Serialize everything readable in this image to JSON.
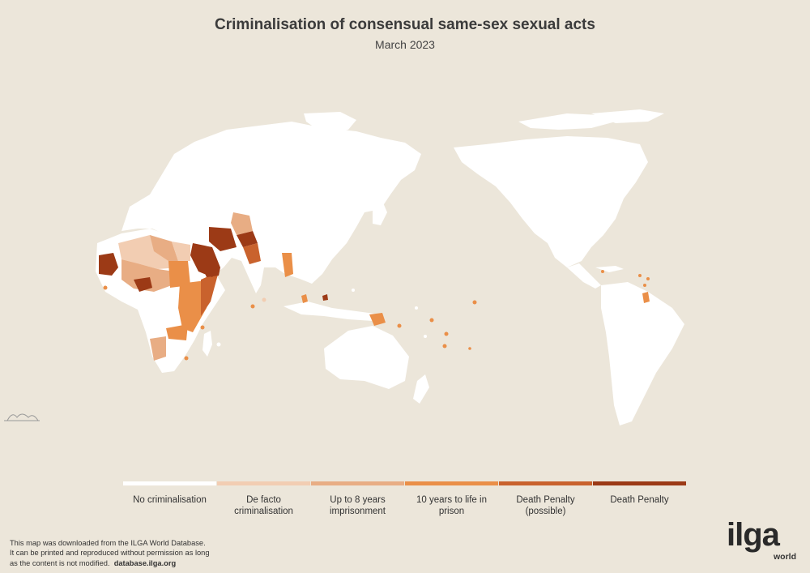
{
  "title": "Criminalisation of consensual same-sex sexual acts",
  "subtitle": "March 2023",
  "legend": [
    {
      "label": "No criminalisation",
      "color": "#ffffff"
    },
    {
      "label": "De facto criminalisation",
      "color": "#f2cdb2"
    },
    {
      "label": "Up to 8 years imprisonment",
      "color": "#e8ad84"
    },
    {
      "label": "10 years to life in prison",
      "color": "#ea8f48"
    },
    {
      "label": "Death Penalty (possible)",
      "color": "#c9622d"
    },
    {
      "label": "Death Penalty",
      "color": "#9c3a16"
    }
  ],
  "footer": {
    "line1": "This map was downloaded from the ILGA World Database.",
    "line2": "It can be printed and reproduced without permission as long",
    "line3": "as the content is not modified.",
    "link": "database.ilga.org"
  },
  "logo": {
    "word": "ilga",
    "sub": "world"
  },
  "colors": {
    "background": "#ece6da",
    "land": "#ffffff"
  }
}
